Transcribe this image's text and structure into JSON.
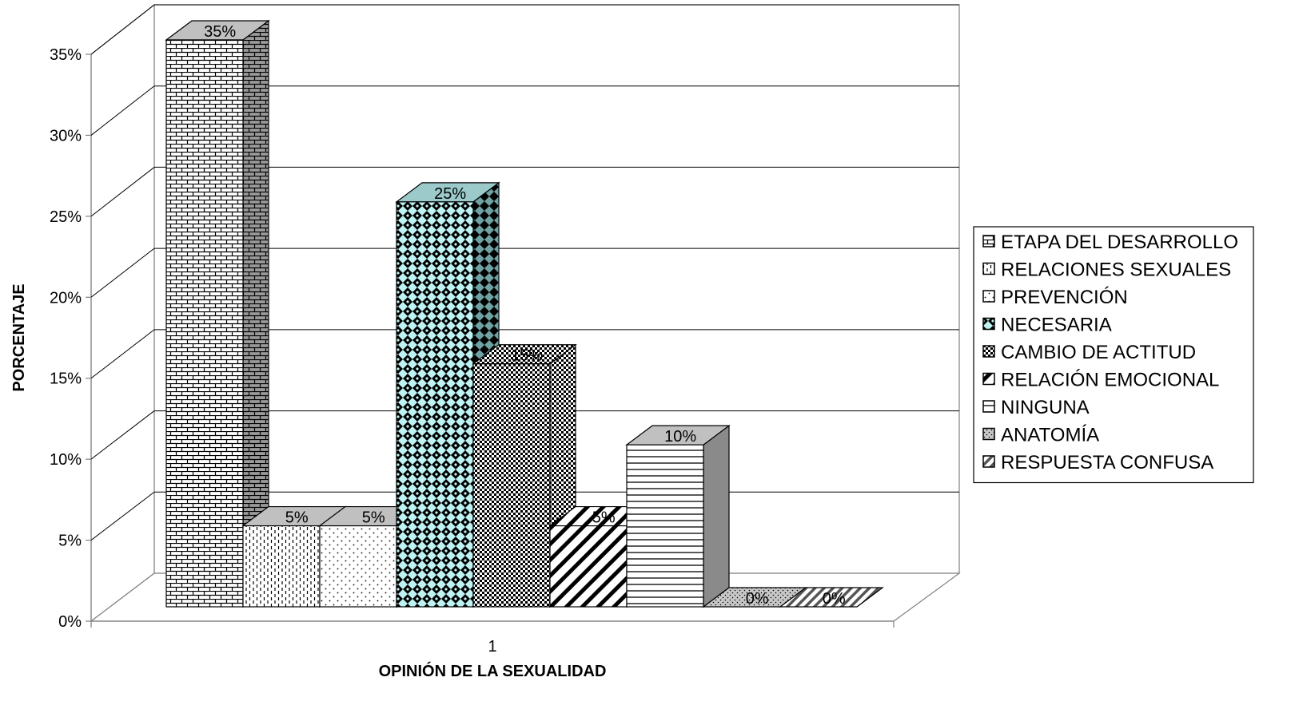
{
  "chart_data": {
    "type": "bar",
    "categories": [
      "1"
    ],
    "xlabel": "OPINIÓN DE LA SEXUALIDAD",
    "ylabel": "PORCENTAJE",
    "ylim": [
      0,
      35
    ],
    "ytick_step": 5,
    "value_suffix": "%",
    "grid": true,
    "legend_position": "right",
    "series": [
      {
        "name": "ETAPA DEL DESARROLLO",
        "values": [
          35
        ],
        "pattern": "bricks",
        "color": "#ffffff"
      },
      {
        "name": "RELACIONES SEXUALES",
        "values": [
          5
        ],
        "pattern": "dashed-vertical",
        "color": "#ffffff"
      },
      {
        "name": "PREVENCIÓN",
        "values": [
          5
        ],
        "pattern": "dots-sparse",
        "color": "#ffffff"
      },
      {
        "name": "NECESARIA",
        "values": [
          25
        ],
        "pattern": "diamonds",
        "color": "#bff3f3"
      },
      {
        "name": "CAMBIO DE ACTITUD",
        "values": [
          15
        ],
        "pattern": "checker",
        "color": "#ffffff"
      },
      {
        "name": "RELACIÓN EMOCIONAL",
        "values": [
          5
        ],
        "pattern": "diagonal-wide",
        "color": "#ffffff"
      },
      {
        "name": "NINGUNA",
        "values": [
          10
        ],
        "pattern": "horizontal",
        "color": "#ffffff"
      },
      {
        "name": "ANATOMÍA",
        "values": [
          0
        ],
        "pattern": "dots-dense",
        "color": "#ffffff"
      },
      {
        "name": "RESPUESTA CONFUSA",
        "values": [
          0
        ],
        "pattern": "diagonal-narrow",
        "color": "#ffffff"
      }
    ]
  }
}
